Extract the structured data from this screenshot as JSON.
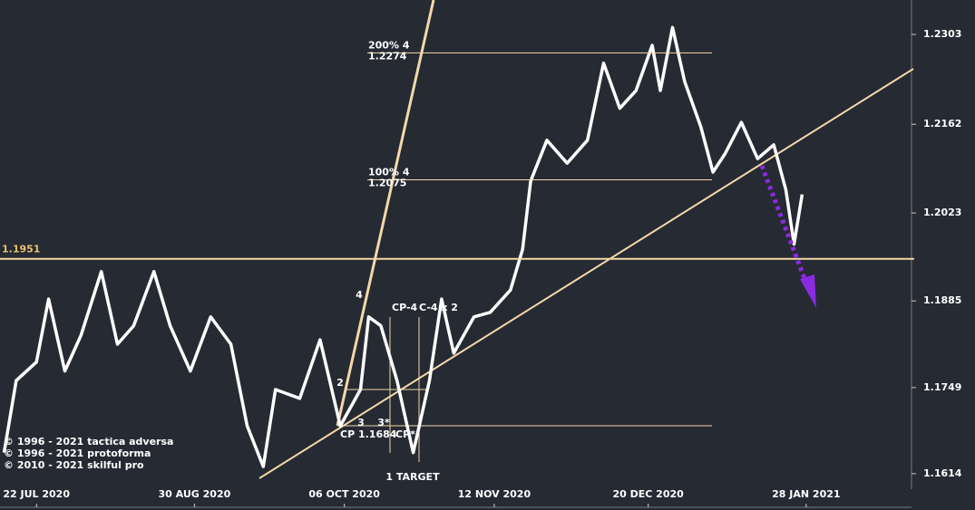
{
  "chart_data": {
    "type": "line",
    "series": [
      {
        "color": "#ffffff",
        "x": [
          "2020-07-14",
          "2020-07-17",
          "2020-07-22",
          "2020-07-25",
          "2020-07-29",
          "2020-08-02",
          "2020-08-07",
          "2020-08-11",
          "2020-08-15",
          "2020-08-20",
          "2020-08-24",
          "2020-08-29",
          "2020-09-03",
          "2020-09-08",
          "2020-09-12",
          "2020-09-16",
          "2020-09-19",
          "2020-09-25",
          "2020-09-30",
          "2020-10-05",
          "2020-10-10",
          "2020-10-12",
          "2020-10-15",
          "2020-10-19",
          "2020-10-23",
          "2020-10-27",
          "2020-10-30",
          "2020-11-02",
          "2020-11-07",
          "2020-11-11",
          "2020-11-16",
          "2020-11-19",
          "2020-11-21",
          "2020-11-25",
          "2020-11-30",
          "2020-12-05",
          "2020-12-09",
          "2020-12-13",
          "2020-12-17",
          "2020-12-21",
          "2020-12-23",
          "2020-12-26",
          "2020-12-29",
          "2021-01-02",
          "2021-01-05",
          "2021-01-08",
          "2021-01-12",
          "2021-01-16",
          "2021-01-20",
          "2021-01-23",
          "2021-01-25",
          "2021-01-27"
        ],
        "values": [
          1.1647,
          1.176,
          1.1789,
          1.1888,
          1.1775,
          1.1831,
          1.1931,
          1.1817,
          1.1846,
          1.1931,
          1.1846,
          1.1775,
          1.186,
          1.1817,
          1.1689,
          1.1625,
          1.1746,
          1.1732,
          1.1824,
          1.1689,
          1.1746,
          1.186,
          1.1846,
          1.176,
          1.1647,
          1.176,
          1.1888,
          1.1803,
          1.186,
          1.1867,
          1.1902,
          1.1966,
          1.2073,
          1.2137,
          1.2101,
          1.2137,
          1.2258,
          1.2187,
          1.2215,
          1.2286,
          1.2215,
          1.2314,
          1.2229,
          1.2158,
          1.2087,
          1.2116,
          1.2165,
          1.2108,
          1.213,
          1.2059,
          1.1974,
          1.2052
        ]
      }
    ],
    "xlim": [
      "2020-07-13",
      "2021-02-23"
    ],
    "xticks": [
      {
        "value": "2020-07-22",
        "label": "22 JUL 2020"
      },
      {
        "value": "2020-08-30",
        "label": "30 AUG 2020"
      },
      {
        "value": "2020-10-06",
        "label": "06 OCT 2020"
      },
      {
        "value": "2020-11-12",
        "label": "12 NOV 2020"
      },
      {
        "value": "2020-12-20",
        "label": "20 DEC 2020"
      },
      {
        "value": "2021-01-28",
        "label": "28 JAN 2021"
      }
    ],
    "ylim": [
      1.1557,
      1.2357
    ],
    "yticks": [
      1.1614,
      1.1749,
      1.1885,
      1.2023,
      1.2162,
      1.2303
    ],
    "levels": [
      {
        "value": 1.1951,
        "label": "1.1951",
        "color": "#e8c170"
      },
      {
        "value": 1.2274,
        "label": "1.2274",
        "tag": "200%  4",
        "color": "#ffffff"
      },
      {
        "value": 1.2075,
        "label": "1.2075",
        "tag": "100%  4",
        "color": "#ffffff"
      }
    ],
    "annotations": [
      "4",
      "CP-4",
      "C-4 x 2",
      "2",
      "3",
      "3*",
      "CP 1.1684",
      "CP*",
      "1 TARGET",
      "© 1996 - 2021 tactica adversa",
      "© 1996 - 2021 protoforma",
      "© 2010 - 2021 skilful pro"
    ]
  }
}
